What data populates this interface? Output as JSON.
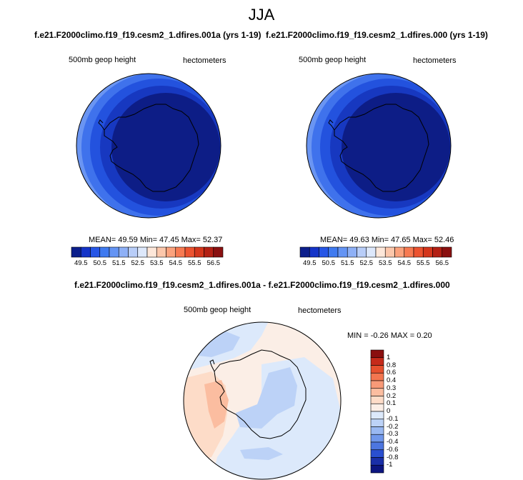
{
  "title": "JJA",
  "panels": [
    {
      "case_title": "f.e21.F2000climo.f19_f19.cesm2_1.dfires.001a (yrs 1-19)",
      "variable": "500mb geop height",
      "units": "hectometers",
      "stats": "MEAN=  49.59  Min=  47.45  Max=  52.37"
    },
    {
      "case_title": "f.e21.F2000climo.f19_f19.cesm2_1.dfires.000 (yrs 1-19)",
      "variable": "500mb geop height",
      "units": "hectometers",
      "stats": "MEAN=  49.63  Min=  47.65  Max=  52.46"
    }
  ],
  "colorbar": {
    "labels": [
      "49.5",
      "50.5",
      "51.5",
      "52.5",
      "53.5",
      "54.5",
      "55.5",
      "56.5"
    ],
    "colors": [
      "#0c1f8c",
      "#1434c8",
      "#2656e6",
      "#3f7af0",
      "#6494f4",
      "#8eb0f6",
      "#b8cdf8",
      "#dde8fb",
      "#fde7d9",
      "#fcc7ab",
      "#fba27d",
      "#f77a52",
      "#ec5330",
      "#d4361c",
      "#b32014",
      "#8a1010"
    ]
  },
  "diff": {
    "title": "f.e21.F2000climo.f19_f19.cesm2_1.dfires.001a - f.e21.F2000climo.f19_f19.cesm2_1.dfires.000",
    "variable": "500mb geop height",
    "units": "hectometers",
    "stats": "MIN =  -0.26 MAX =   0.20",
    "colorbar_labels": [
      "1",
      "0.8",
      "0.6",
      "0.4",
      "0.3",
      "0.2",
      "0.1",
      "0",
      "-0.1",
      "-0.2",
      "-0.3",
      "-0.4",
      "-0.6",
      "-0.8",
      "-1"
    ],
    "colorbar_colors": [
      "#8a0f0f",
      "#c52a1a",
      "#e6502e",
      "#f37650",
      "#f89a78",
      "#fbbda0",
      "#fddcc8",
      "#fbeee6",
      "#dce9fb",
      "#bcd2f7",
      "#99b8f2",
      "#7097eb",
      "#4d76e0",
      "#2a4fd0",
      "#1a2fa8",
      "#0c1580"
    ]
  }
}
